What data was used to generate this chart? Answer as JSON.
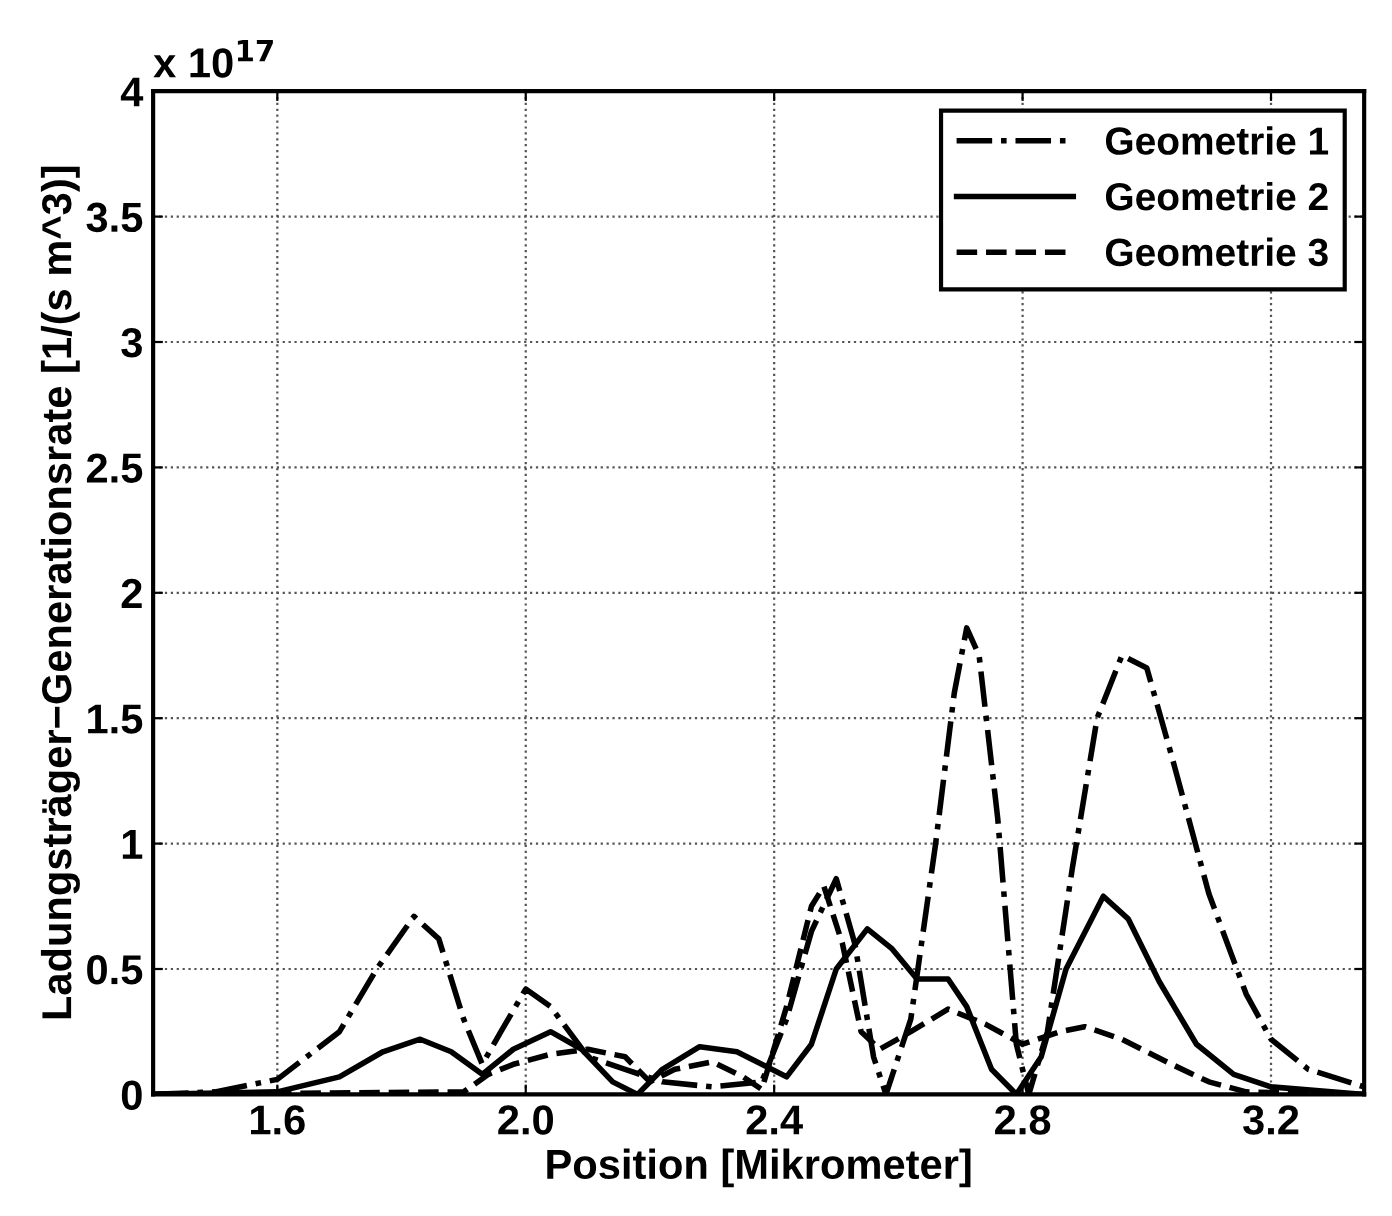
{
  "chart_data": {
    "type": "line",
    "xlabel": "Position [Mikrometer]",
    "ylabel": "Ladungsträger−Generationsrate [1/(s m^3)]",
    "annotations": [
      "x 10$^{17}$"
    ],
    "xlim": [
      1.4,
      3.35
    ],
    "xticks": [
      {
        "value": 1.6,
        "label": "1.6"
      },
      {
        "value": 2.0,
        "label": "2.0"
      },
      {
        "value": 2.4,
        "label": "2.4"
      },
      {
        "value": 2.8,
        "label": "2.8"
      },
      {
        "value": 3.2,
        "label": "3.2"
      }
    ],
    "ylim": [
      0,
      4
    ],
    "yticks": [
      0,
      0.5,
      1,
      1.5,
      2,
      2.5,
      3,
      3.5,
      4
    ],
    "grid": true,
    "legend": "top right",
    "series": [
      {
        "name": "Geometrie 1",
        "color": "#000000",
        "line_style": "dashdot",
        "x": [
          1.4,
          1.5,
          1.6,
          1.7,
          1.76,
          1.82,
          1.86,
          1.9,
          1.93,
          1.96,
          2.0,
          2.04,
          2.1,
          2.16,
          2.22,
          2.3,
          2.38,
          2.42,
          2.46,
          2.5,
          2.53,
          2.56,
          2.58,
          2.62,
          2.66,
          2.69,
          2.71,
          2.73,
          2.76,
          2.79,
          2.81,
          2.84,
          2.88,
          2.92,
          2.96,
          3.0,
          3.04,
          3.1,
          3.16,
          3.2,
          3.26,
          3.35
        ],
        "values": [
          0,
          0.01,
          0.06,
          0.25,
          0.5,
          0.71,
          0.62,
          0.3,
          0.12,
          0.25,
          0.42,
          0.35,
          0.15,
          0.1,
          0.05,
          0.03,
          0.05,
          0.3,
          0.65,
          0.86,
          0.6,
          0.15,
          0,
          0.3,
          1.0,
          1.6,
          1.86,
          1.75,
          1.1,
          0.2,
          0,
          0.25,
          0.9,
          1.5,
          1.75,
          1.7,
          1.35,
          0.8,
          0.4,
          0.22,
          0.1,
          0.03
        ]
      },
      {
        "name": "Geometrie 2",
        "color": "#000000",
        "line_style": "solid",
        "x": [
          1.4,
          1.6,
          1.7,
          1.77,
          1.83,
          1.88,
          1.93,
          1.98,
          2.04,
          2.09,
          2.14,
          2.18,
          2.22,
          2.28,
          2.34,
          2.38,
          2.42,
          2.46,
          2.5,
          2.55,
          2.59,
          2.63,
          2.68,
          2.71,
          2.75,
          2.79,
          2.83,
          2.87,
          2.93,
          2.97,
          3.02,
          3.08,
          3.14,
          3.2,
          3.35
        ],
        "values": [
          0,
          0.01,
          0.07,
          0.17,
          0.22,
          0.17,
          0.08,
          0.18,
          0.25,
          0.18,
          0.05,
          0,
          0.1,
          0.19,
          0.17,
          0.12,
          0.07,
          0.2,
          0.5,
          0.66,
          0.58,
          0.46,
          0.46,
          0.35,
          0.1,
          0,
          0.15,
          0.5,
          0.79,
          0.7,
          0.45,
          0.2,
          0.08,
          0.03,
          0
        ]
      },
      {
        "name": "Geometrie 3",
        "color": "#000000",
        "line_style": "dashed",
        "x": [
          1.4,
          1.9,
          1.94,
          1.98,
          2.04,
          2.1,
          2.16,
          2.2,
          2.24,
          2.3,
          2.35,
          2.38,
          2.42,
          2.46,
          2.48,
          2.51,
          2.54,
          2.57,
          2.62,
          2.68,
          2.74,
          2.8,
          2.86,
          2.9,
          2.96,
          3.04,
          3.1,
          3.16,
          3.35
        ],
        "values": [
          0,
          0.01,
          0.08,
          0.12,
          0.16,
          0.18,
          0.15,
          0.05,
          0.1,
          0.13,
          0.07,
          0.02,
          0.35,
          0.75,
          0.83,
          0.6,
          0.25,
          0.18,
          0.25,
          0.34,
          0.28,
          0.2,
          0.25,
          0.27,
          0.22,
          0.12,
          0.05,
          0.01,
          0
        ]
      }
    ]
  }
}
